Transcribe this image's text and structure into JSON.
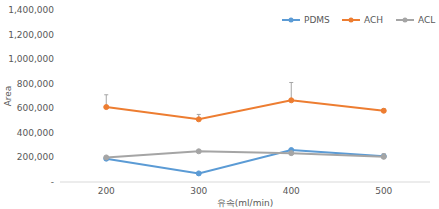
{
  "chart_data": {
    "type": "line",
    "x_label": "유속(ml/min)",
    "y_label": "Area",
    "categories": [
      "200",
      "300",
      "400",
      "500"
    ],
    "series": [
      {
        "name": "PDMS",
        "color": "#5b9bd5",
        "marker": "circle",
        "values": [
          190000,
          70000,
          260000,
          210000
        ]
      },
      {
        "name": "ACH",
        "color": "#ed7d31",
        "marker": "circle",
        "values": [
          610000,
          510000,
          665000,
          580000
        ],
        "errors": [
          100000,
          40000,
          145000,
          15000
        ]
      },
      {
        "name": "ACL",
        "color": "#a5a5a5",
        "marker": "circle",
        "values": [
          200000,
          250000,
          235000,
          205000
        ],
        "errors": [
          0,
          0,
          0,
          25000
        ]
      }
    ],
    "ylim": [
      0,
      1400000
    ],
    "yticks": [
      {
        "value": 0,
        "label": "-"
      },
      {
        "value": 200000,
        "label": "200,000"
      },
      {
        "value": 400000,
        "label": "400,000"
      },
      {
        "value": 600000,
        "label": "600,000"
      },
      {
        "value": 800000,
        "label": "800,000"
      },
      {
        "value": 1000000,
        "label": "1,000,000"
      },
      {
        "value": 1200000,
        "label": "1,200,000"
      },
      {
        "value": 1400000,
        "label": "1,400,000"
      }
    ],
    "grid": false,
    "legend": "top-right"
  }
}
